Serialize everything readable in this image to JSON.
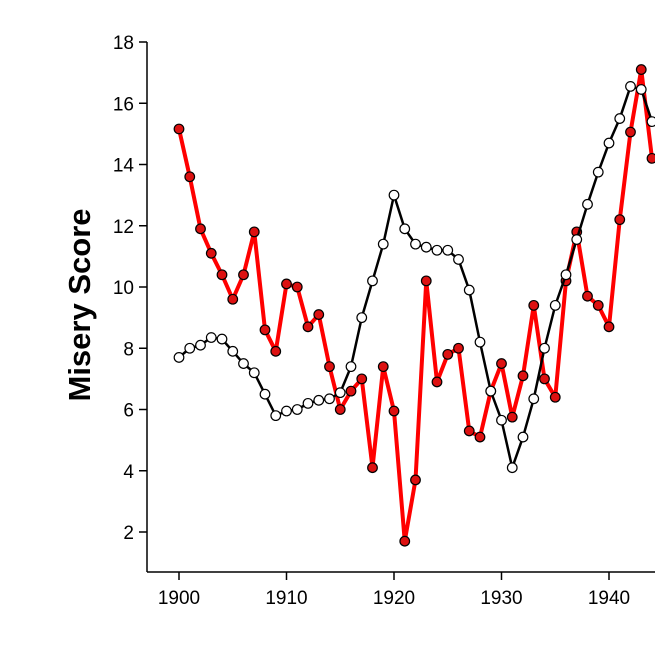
{
  "panel_label": ")",
  "chart_data": {
    "type": "line",
    "title": "",
    "xlabel": "",
    "ylabel": "Misery Score",
    "xlim": [
      1899,
      1945
    ],
    "ylim": [
      1,
      18
    ],
    "x_ticks": [
      1900,
      1910,
      1920,
      1930,
      1940
    ],
    "y_ticks": [
      2,
      4,
      6,
      8,
      10,
      12,
      14,
      16,
      18
    ],
    "grid": false,
    "legend": "none",
    "x": [
      1900,
      1901,
      1902,
      1903,
      1904,
      1905,
      1906,
      1907,
      1908,
      1909,
      1910,
      1911,
      1912,
      1913,
      1914,
      1915,
      1916,
      1917,
      1918,
      1919,
      1920,
      1921,
      1922,
      1923,
      1924,
      1925,
      1926,
      1927,
      1928,
      1929,
      1930,
      1931,
      1932,
      1933,
      1934,
      1935,
      1936,
      1937,
      1938,
      1939,
      1940,
      1941,
      1942,
      1943,
      1944
    ],
    "series": [
      {
        "name": "red",
        "color": "#ff0000",
        "marker_fill": "#dd1111",
        "values": [
          15.16,
          13.6,
          11.9,
          11.1,
          10.4,
          9.6,
          10.4,
          11.8,
          8.6,
          7.9,
          10.1,
          10.0,
          8.7,
          9.1,
          7.4,
          6.0,
          6.6,
          7.0,
          4.1,
          7.4,
          5.95,
          1.7,
          3.7,
          10.2,
          6.9,
          7.8,
          8.0,
          5.3,
          5.1,
          6.6,
          7.5,
          5.75,
          7.1,
          9.4,
          7.0,
          6.4,
          10.2,
          11.8,
          9.7,
          9.4,
          8.7,
          12.2,
          15.06,
          17.1,
          14.2
        ]
      },
      {
        "name": "black",
        "color": "#000000",
        "marker_fill": "#ffffff",
        "values": [
          7.7,
          8.0,
          8.1,
          8.35,
          8.3,
          7.9,
          7.5,
          7.2,
          6.5,
          5.8,
          5.95,
          6.0,
          6.2,
          6.3,
          6.35,
          6.55,
          7.4,
          9.0,
          10.2,
          11.4,
          13.0,
          11.9,
          11.4,
          11.3,
          11.2,
          11.2,
          10.9,
          9.9,
          8.2,
          6.6,
          5.65,
          4.1,
          5.1,
          6.35,
          8.0,
          9.4,
          10.4,
          11.55,
          12.7,
          13.75,
          14.7,
          15.5,
          16.55,
          16.45,
          15.4
        ]
      }
    ]
  }
}
